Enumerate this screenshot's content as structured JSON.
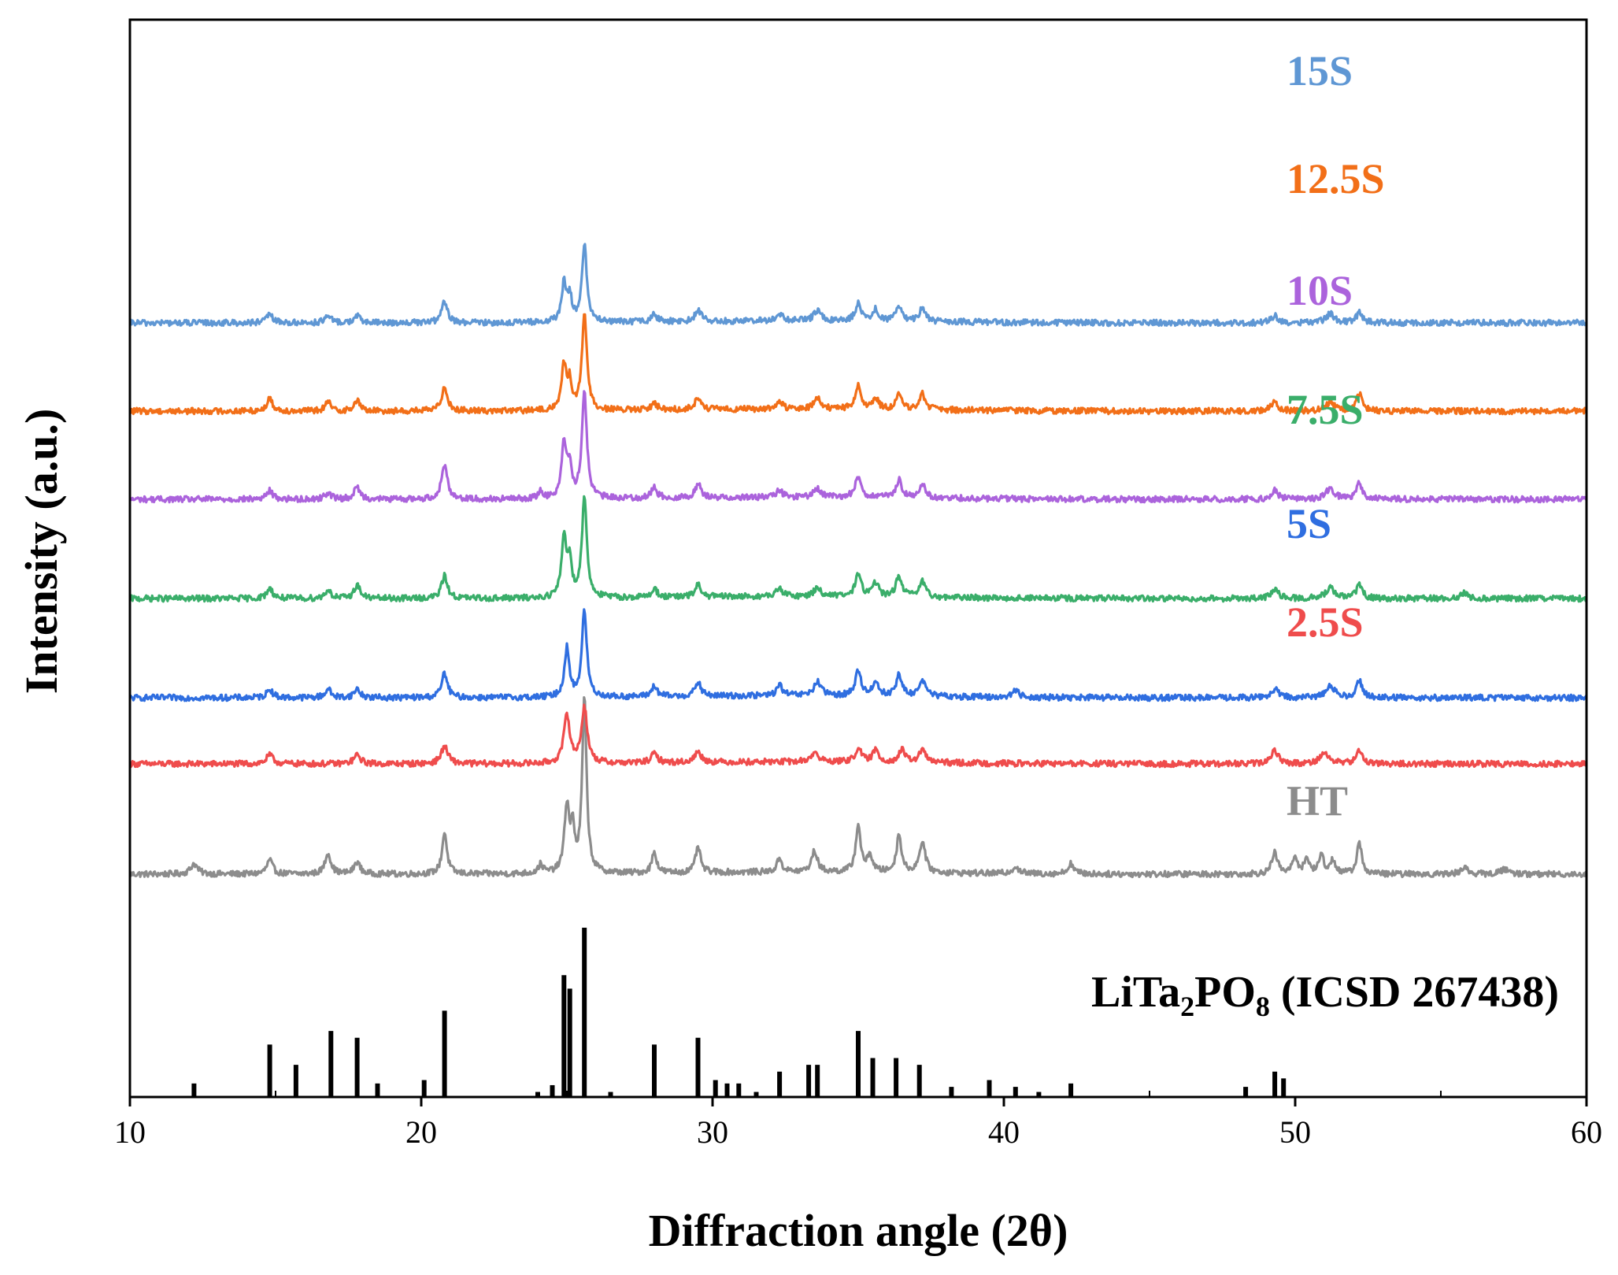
{
  "chart_data": {
    "type": "line",
    "title": "",
    "xlabel": "Diffraction angle (2θ)",
    "ylabel": "Intensity (a.u.)",
    "xlim": [
      10,
      60
    ],
    "xticks": [
      10,
      20,
      30,
      40,
      50,
      60
    ],
    "xtick_labels": [
      "10",
      "20",
      "30",
      "40",
      "50",
      "60"
    ],
    "grid": false,
    "reference": {
      "label_main": "LiTa",
      "label_sub1": "2",
      "label_mid": "PO",
      "label_sub2": "8",
      "label_end": " (ICSD 267438)",
      "color": "#000000",
      "peaks": [
        {
          "x": 12.2,
          "h": 0.08
        },
        {
          "x": 14.8,
          "h": 0.31
        },
        {
          "x": 15.7,
          "h": 0.19
        },
        {
          "x": 16.9,
          "h": 0.39
        },
        {
          "x": 17.8,
          "h": 0.35
        },
        {
          "x": 18.5,
          "h": 0.08
        },
        {
          "x": 20.1,
          "h": 0.1
        },
        {
          "x": 20.8,
          "h": 0.51
        },
        {
          "x": 24.0,
          "h": 0.03
        },
        {
          "x": 24.5,
          "h": 0.07
        },
        {
          "x": 24.9,
          "h": 0.72
        },
        {
          "x": 25.1,
          "h": 0.64
        },
        {
          "x": 25.6,
          "h": 1.0
        },
        {
          "x": 26.5,
          "h": 0.03
        },
        {
          "x": 28.0,
          "h": 0.31
        },
        {
          "x": 29.5,
          "h": 0.35
        },
        {
          "x": 30.1,
          "h": 0.1
        },
        {
          "x": 30.5,
          "h": 0.08
        },
        {
          "x": 30.9,
          "h": 0.08
        },
        {
          "x": 31.5,
          "h": 0.03
        },
        {
          "x": 32.3,
          "h": 0.15
        },
        {
          "x": 33.3,
          "h": 0.19
        },
        {
          "x": 33.6,
          "h": 0.19
        },
        {
          "x": 35.0,
          "h": 0.39
        },
        {
          "x": 35.5,
          "h": 0.23
        },
        {
          "x": 36.3,
          "h": 0.23
        },
        {
          "x": 37.1,
          "h": 0.19
        },
        {
          "x": 38.2,
          "h": 0.06
        },
        {
          "x": 39.5,
          "h": 0.1
        },
        {
          "x": 40.4,
          "h": 0.06
        },
        {
          "x": 41.2,
          "h": 0.03
        },
        {
          "x": 42.3,
          "h": 0.08
        },
        {
          "x": 48.3,
          "h": 0.06
        },
        {
          "x": 49.3,
          "h": 0.15
        },
        {
          "x": 49.6,
          "h": 0.11
        }
      ]
    },
    "series": [
      {
        "name": "HT",
        "color": "#8c8c8c",
        "offset_level": 0.0,
        "peaks": [
          {
            "x": 12.2,
            "h": 0.06,
            "w": 0.14
          },
          {
            "x": 14.8,
            "h": 0.08,
            "w": 0.12
          },
          {
            "x": 16.8,
            "h": 0.12,
            "w": 0.12
          },
          {
            "x": 17.8,
            "h": 0.07,
            "w": 0.12
          },
          {
            "x": 20.8,
            "h": 0.24,
            "w": 0.1
          },
          {
            "x": 24.1,
            "h": 0.05,
            "w": 0.1
          },
          {
            "x": 25.0,
            "h": 0.38,
            "w": 0.1
          },
          {
            "x": 25.2,
            "h": 0.22,
            "w": 0.08
          },
          {
            "x": 25.6,
            "h": 1.0,
            "w": 0.09
          },
          {
            "x": 28.0,
            "h": 0.12,
            "w": 0.1
          },
          {
            "x": 29.5,
            "h": 0.15,
            "w": 0.1
          },
          {
            "x": 32.3,
            "h": 0.08,
            "w": 0.1
          },
          {
            "x": 33.5,
            "h": 0.12,
            "w": 0.12
          },
          {
            "x": 35.0,
            "h": 0.27,
            "w": 0.1
          },
          {
            "x": 35.4,
            "h": 0.1,
            "w": 0.1
          },
          {
            "x": 36.4,
            "h": 0.22,
            "w": 0.1
          },
          {
            "x": 37.2,
            "h": 0.18,
            "w": 0.12
          },
          {
            "x": 40.4,
            "h": 0.04,
            "w": 0.14
          },
          {
            "x": 42.3,
            "h": 0.06,
            "w": 0.12
          },
          {
            "x": 49.3,
            "h": 0.12,
            "w": 0.12
          },
          {
            "x": 50.0,
            "h": 0.1,
            "w": 0.1
          },
          {
            "x": 50.4,
            "h": 0.09,
            "w": 0.1
          },
          {
            "x": 50.9,
            "h": 0.11,
            "w": 0.1
          },
          {
            "x": 51.3,
            "h": 0.08,
            "w": 0.1
          },
          {
            "x": 52.2,
            "h": 0.18,
            "w": 0.1
          },
          {
            "x": 55.8,
            "h": 0.04,
            "w": 0.14
          },
          {
            "x": 57.2,
            "h": 0.03,
            "w": 0.16
          }
        ]
      },
      {
        "name": "2.5S",
        "color": "#ef4c4c",
        "offset_level": 1.0,
        "peaks": [
          {
            "x": 14.8,
            "h": 0.05,
            "w": 0.14
          },
          {
            "x": 17.8,
            "h": 0.05,
            "w": 0.14
          },
          {
            "x": 20.8,
            "h": 0.1,
            "w": 0.14
          },
          {
            "x": 25.0,
            "h": 0.28,
            "w": 0.12
          },
          {
            "x": 25.6,
            "h": 0.32,
            "w": 0.12
          },
          {
            "x": 28.0,
            "h": 0.05,
            "w": 0.14
          },
          {
            "x": 29.5,
            "h": 0.06,
            "w": 0.14
          },
          {
            "x": 33.5,
            "h": 0.05,
            "w": 0.16
          },
          {
            "x": 35.0,
            "h": 0.08,
            "w": 0.12
          },
          {
            "x": 35.6,
            "h": 0.07,
            "w": 0.12
          },
          {
            "x": 36.5,
            "h": 0.07,
            "w": 0.12
          },
          {
            "x": 37.2,
            "h": 0.07,
            "w": 0.14
          },
          {
            "x": 49.3,
            "h": 0.08,
            "w": 0.14
          },
          {
            "x": 51.0,
            "h": 0.06,
            "w": 0.2
          },
          {
            "x": 52.2,
            "h": 0.07,
            "w": 0.14
          }
        ]
      },
      {
        "name": "5S",
        "color": "#2f6ee0",
        "offset_level": 1.6,
        "peaks": [
          {
            "x": 14.8,
            "h": 0.05,
            "w": 0.12
          },
          {
            "x": 16.8,
            "h": 0.05,
            "w": 0.12
          },
          {
            "x": 17.8,
            "h": 0.05,
            "w": 0.12
          },
          {
            "x": 20.8,
            "h": 0.14,
            "w": 0.12
          },
          {
            "x": 25.0,
            "h": 0.28,
            "w": 0.1
          },
          {
            "x": 25.6,
            "h": 0.5,
            "w": 0.1
          },
          {
            "x": 28.0,
            "h": 0.06,
            "w": 0.12
          },
          {
            "x": 29.5,
            "h": 0.08,
            "w": 0.12
          },
          {
            "x": 32.3,
            "h": 0.06,
            "w": 0.12
          },
          {
            "x": 33.6,
            "h": 0.08,
            "w": 0.14
          },
          {
            "x": 35.0,
            "h": 0.14,
            "w": 0.12
          },
          {
            "x": 35.6,
            "h": 0.08,
            "w": 0.12
          },
          {
            "x": 36.4,
            "h": 0.12,
            "w": 0.12
          },
          {
            "x": 37.2,
            "h": 0.1,
            "w": 0.12
          },
          {
            "x": 40.4,
            "h": 0.04,
            "w": 0.14
          },
          {
            "x": 49.3,
            "h": 0.05,
            "w": 0.14
          },
          {
            "x": 51.2,
            "h": 0.07,
            "w": 0.18
          },
          {
            "x": 52.2,
            "h": 0.1,
            "w": 0.12
          }
        ]
      },
      {
        "name": "7.5S",
        "color": "#3aae6a",
        "offset_level": 2.5,
        "peaks": [
          {
            "x": 14.8,
            "h": 0.06,
            "w": 0.12
          },
          {
            "x": 16.8,
            "h": 0.05,
            "w": 0.12
          },
          {
            "x": 17.8,
            "h": 0.08,
            "w": 0.12
          },
          {
            "x": 20.8,
            "h": 0.13,
            "w": 0.12
          },
          {
            "x": 24.9,
            "h": 0.35,
            "w": 0.1
          },
          {
            "x": 25.1,
            "h": 0.2,
            "w": 0.08
          },
          {
            "x": 25.6,
            "h": 0.58,
            "w": 0.1
          },
          {
            "x": 28.0,
            "h": 0.05,
            "w": 0.12
          },
          {
            "x": 29.5,
            "h": 0.07,
            "w": 0.12
          },
          {
            "x": 32.3,
            "h": 0.05,
            "w": 0.12
          },
          {
            "x": 33.6,
            "h": 0.05,
            "w": 0.14
          },
          {
            "x": 35.0,
            "h": 0.13,
            "w": 0.12
          },
          {
            "x": 35.6,
            "h": 0.08,
            "w": 0.12
          },
          {
            "x": 36.4,
            "h": 0.12,
            "w": 0.12
          },
          {
            "x": 37.2,
            "h": 0.09,
            "w": 0.12
          },
          {
            "x": 49.3,
            "h": 0.05,
            "w": 0.14
          },
          {
            "x": 51.2,
            "h": 0.06,
            "w": 0.18
          },
          {
            "x": 52.2,
            "h": 0.08,
            "w": 0.12
          },
          {
            "x": 55.8,
            "h": 0.03,
            "w": 0.14
          }
        ]
      },
      {
        "name": "10S",
        "color": "#ab63dc",
        "offset_level": 3.4,
        "peaks": [
          {
            "x": 14.8,
            "h": 0.05,
            "w": 0.12
          },
          {
            "x": 16.8,
            "h": 0.04,
            "w": 0.12
          },
          {
            "x": 17.8,
            "h": 0.07,
            "w": 0.12
          },
          {
            "x": 20.8,
            "h": 0.2,
            "w": 0.12
          },
          {
            "x": 24.1,
            "h": 0.04,
            "w": 0.1
          },
          {
            "x": 24.9,
            "h": 0.32,
            "w": 0.1
          },
          {
            "x": 25.1,
            "h": 0.18,
            "w": 0.08
          },
          {
            "x": 25.6,
            "h": 0.62,
            "w": 0.1
          },
          {
            "x": 28.0,
            "h": 0.06,
            "w": 0.12
          },
          {
            "x": 29.5,
            "h": 0.08,
            "w": 0.12
          },
          {
            "x": 32.3,
            "h": 0.04,
            "w": 0.12
          },
          {
            "x": 33.6,
            "h": 0.05,
            "w": 0.14
          },
          {
            "x": 35.0,
            "h": 0.12,
            "w": 0.12
          },
          {
            "x": 36.4,
            "h": 0.1,
            "w": 0.12
          },
          {
            "x": 37.2,
            "h": 0.08,
            "w": 0.12
          },
          {
            "x": 49.3,
            "h": 0.05,
            "w": 0.14
          },
          {
            "x": 51.2,
            "h": 0.06,
            "w": 0.18
          },
          {
            "x": 52.2,
            "h": 0.09,
            "w": 0.12
          }
        ]
      },
      {
        "name": "12.5S",
        "color": "#f26f18",
        "offset_level": 4.2,
        "peaks": [
          {
            "x": 14.8,
            "h": 0.07,
            "w": 0.12
          },
          {
            "x": 16.8,
            "h": 0.05,
            "w": 0.12
          },
          {
            "x": 17.8,
            "h": 0.06,
            "w": 0.12
          },
          {
            "x": 20.8,
            "h": 0.14,
            "w": 0.12
          },
          {
            "x": 24.9,
            "h": 0.26,
            "w": 0.1
          },
          {
            "x": 25.1,
            "h": 0.15,
            "w": 0.08
          },
          {
            "x": 25.6,
            "h": 0.56,
            "w": 0.1
          },
          {
            "x": 28.0,
            "h": 0.04,
            "w": 0.12
          },
          {
            "x": 29.5,
            "h": 0.07,
            "w": 0.12
          },
          {
            "x": 32.3,
            "h": 0.04,
            "w": 0.12
          },
          {
            "x": 33.6,
            "h": 0.06,
            "w": 0.14
          },
          {
            "x": 35.0,
            "h": 0.13,
            "w": 0.12
          },
          {
            "x": 35.6,
            "h": 0.06,
            "w": 0.12
          },
          {
            "x": 36.4,
            "h": 0.08,
            "w": 0.12
          },
          {
            "x": 37.2,
            "h": 0.09,
            "w": 0.12
          },
          {
            "x": 49.3,
            "h": 0.05,
            "w": 0.14
          },
          {
            "x": 51.2,
            "h": 0.05,
            "w": 0.18
          },
          {
            "x": 52.2,
            "h": 0.1,
            "w": 0.12
          }
        ]
      },
      {
        "name": "15S",
        "color": "#5f97d4",
        "offset_level": 5.0,
        "peaks": [
          {
            "x": 14.8,
            "h": 0.05,
            "w": 0.12
          },
          {
            "x": 16.8,
            "h": 0.04,
            "w": 0.12
          },
          {
            "x": 17.8,
            "h": 0.04,
            "w": 0.12
          },
          {
            "x": 20.8,
            "h": 0.12,
            "w": 0.12
          },
          {
            "x": 24.9,
            "h": 0.22,
            "w": 0.1
          },
          {
            "x": 25.1,
            "h": 0.14,
            "w": 0.08
          },
          {
            "x": 25.6,
            "h": 0.45,
            "w": 0.1
          },
          {
            "x": 28.0,
            "h": 0.04,
            "w": 0.12
          },
          {
            "x": 29.5,
            "h": 0.07,
            "w": 0.12
          },
          {
            "x": 32.3,
            "h": 0.04,
            "w": 0.12
          },
          {
            "x": 33.6,
            "h": 0.06,
            "w": 0.14
          },
          {
            "x": 35.0,
            "h": 0.1,
            "w": 0.12
          },
          {
            "x": 35.6,
            "h": 0.07,
            "w": 0.12
          },
          {
            "x": 36.4,
            "h": 0.08,
            "w": 0.12
          },
          {
            "x": 37.2,
            "h": 0.08,
            "w": 0.12
          },
          {
            "x": 49.3,
            "h": 0.04,
            "w": 0.14
          },
          {
            "x": 51.2,
            "h": 0.05,
            "w": 0.18
          },
          {
            "x": 52.2,
            "h": 0.06,
            "w": 0.12
          }
        ]
      }
    ]
  }
}
